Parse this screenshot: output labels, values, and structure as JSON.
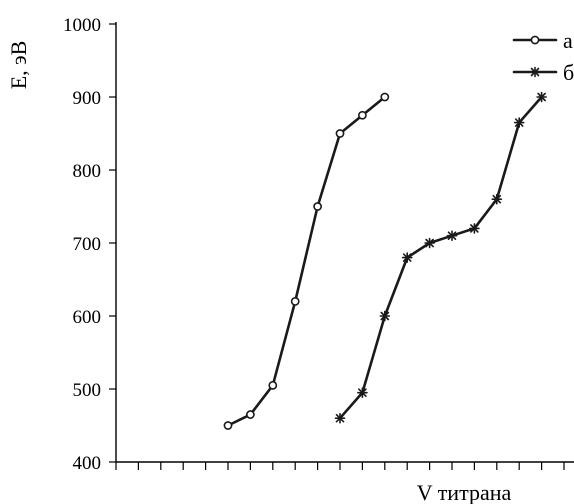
{
  "chart_data": {
    "type": "line",
    "xlabel": "V титрана",
    "ylabel": "E, эВ",
    "ylim": [
      400,
      1000
    ],
    "y_ticks": [
      400,
      500,
      600,
      700,
      800,
      900,
      1000
    ],
    "x_tick_count": 20,
    "x_tick_labels": false,
    "grid": false,
    "legend_position": "top-right",
    "series": [
      {
        "name": "а",
        "marker": "circle",
        "x": [
          5,
          6,
          7,
          8,
          9,
          10,
          11,
          12
        ],
        "values": [
          450,
          465,
          505,
          620,
          750,
          850,
          875,
          900
        ]
      },
      {
        "name": "б",
        "marker": "star",
        "x": [
          10,
          11,
          12,
          13,
          14,
          15,
          16,
          17,
          18,
          19
        ],
        "values": [
          460,
          495,
          600,
          680,
          700,
          710,
          720,
          760,
          865,
          900
        ]
      }
    ]
  }
}
